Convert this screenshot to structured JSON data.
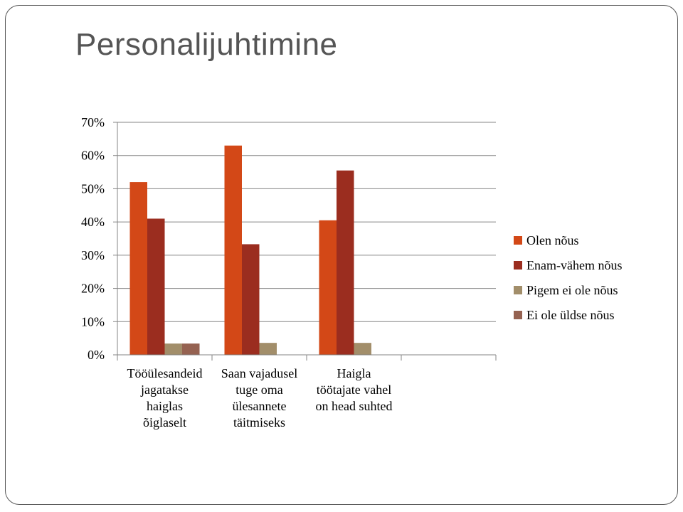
{
  "slide": {
    "title": "Personalijuhtimine"
  },
  "chart_data": {
    "type": "bar",
    "title": "",
    "xlabel": "",
    "ylabel": "",
    "ylim": [
      0,
      0.7
    ],
    "ytick_values": [
      0,
      0.1,
      0.2,
      0.3,
      0.4,
      0.5,
      0.6,
      0.7
    ],
    "ytick_labels": [
      "0%",
      "10%",
      "20%",
      "30%",
      "40%",
      "50%",
      "60%",
      "70%"
    ],
    "grid": true,
    "legend_position": "right",
    "categories": [
      [
        "Tööülesandeid",
        "jagatakse",
        "haiglas",
        "õiglaselt"
      ],
      [
        "Saan vajadusel",
        "tuge oma",
        "ülesannete",
        "täitmiseks"
      ],
      [
        "Haigla",
        "töötajate vahel",
        "on head suhted"
      ],
      []
    ],
    "series": [
      {
        "name": "Olen nõus",
        "color": "#D34817",
        "values": [
          0.52,
          0.63,
          0.405,
          null
        ]
      },
      {
        "name": "Enam-vähem nõus",
        "color": "#9B2D1F",
        "values": [
          0.41,
          0.333,
          0.555,
          null
        ]
      },
      {
        "name": "Pigem ei ole nõus",
        "color": "#A28E6A",
        "values": [
          0.034,
          0.036,
          0.036,
          null
        ]
      },
      {
        "name": "Ei ole üldse nõus",
        "color": "#956251",
        "values": [
          0.034,
          0,
          0,
          null
        ]
      }
    ]
  }
}
